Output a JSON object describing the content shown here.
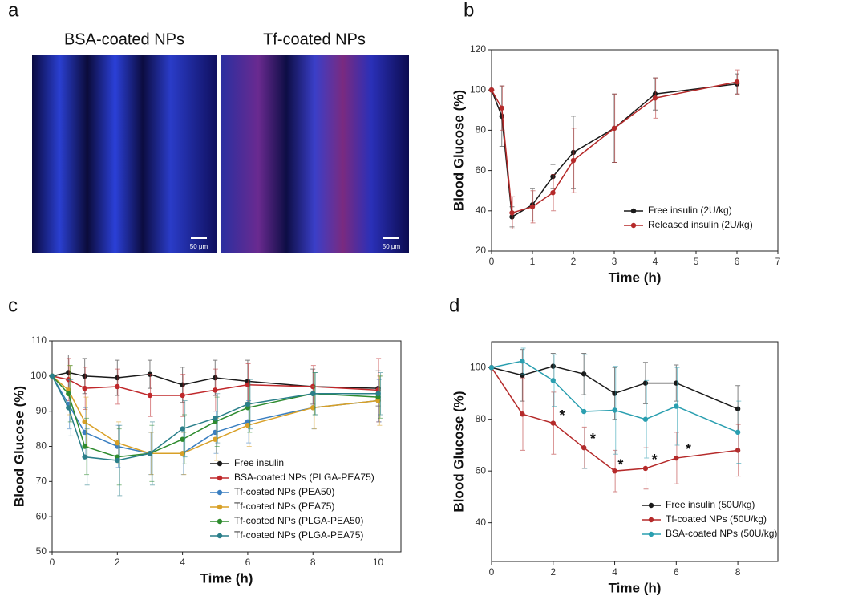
{
  "image_panel": {
    "label": "a",
    "titles": [
      "BSA-coated NPs",
      "Tf-coated NPs"
    ],
    "scale_bars": [
      "50 μm",
      "50 μm"
    ]
  },
  "chart_data": [
    {
      "type": "line",
      "label": "b",
      "x_label": "Time (h)",
      "y_label": "Blood Glucose (%)",
      "x": [
        0,
        0.25,
        0.5,
        1,
        1.5,
        2,
        3,
        4,
        6
      ],
      "series": [
        {
          "name": "Free insulin (2U/kg)",
          "color": "#1a1a1a",
          "values": [
            100,
            87,
            37,
            43,
            57,
            69,
            81,
            98,
            103
          ],
          "errors": [
            0,
            15,
            5,
            8,
            6,
            18,
            17,
            8,
            5
          ]
        },
        {
          "name": "Released insulin (2U/kg)",
          "color": "#b52a2a",
          "values": [
            100,
            91,
            39,
            42,
            49,
            65,
            81,
            96,
            104
          ],
          "errors": [
            0,
            11,
            8,
            8,
            9,
            16,
            17,
            10,
            6
          ]
        }
      ],
      "xlim": [
        0,
        7
      ],
      "xticks": [
        0,
        1,
        2,
        3,
        4,
        5,
        6,
        7
      ],
      "ylim": [
        20,
        120
      ],
      "yticks": [
        20,
        40,
        60,
        80,
        100,
        120
      ]
    },
    {
      "type": "line",
      "label": "c",
      "x_label": "Time (h)",
      "y_label": "Blood Glucose (%)",
      "x": [
        0,
        0.5,
        1,
        2,
        3,
        4,
        5,
        6,
        8,
        10
      ],
      "series": [
        {
          "name": "Free insulin",
          "color": "#1a1a1a",
          "values": [
            100,
            101,
            100,
            99.5,
            100.5,
            97.5,
            99.5,
            98.5,
            97,
            96.5
          ],
          "errors": [
            0,
            5,
            5,
            5,
            4,
            5,
            5,
            6,
            5,
            5
          ]
        },
        {
          "name": "BSA-coated NPs (PLGA-PEA75)",
          "color": "#c0282b",
          "values": [
            100,
            99,
            96.5,
            97,
            94.5,
            94.5,
            96,
            97.5,
            97,
            96
          ],
          "errors": [
            0,
            6,
            6,
            5,
            6,
            6,
            6,
            6,
            6,
            9
          ]
        },
        {
          "name": "Tf-coated NPs (PEA50)",
          "color": "#3a7fc1",
          "values": [
            100,
            92,
            84,
            80,
            78,
            78,
            84,
            87,
            91,
            93
          ],
          "errors": [
            0,
            7,
            7,
            6,
            6,
            6,
            6,
            6,
            6,
            6
          ]
        },
        {
          "name": "Tf-coated NPs (PEA75)",
          "color": "#d8a027",
          "values": [
            100,
            96,
            87,
            81,
            78,
            78,
            82,
            86,
            91,
            93
          ],
          "errors": [
            0,
            7,
            7,
            6,
            6,
            6,
            6,
            6,
            6,
            7
          ]
        },
        {
          "name": "Tf-coated NPs (PLGA-PEA50)",
          "color": "#2e8b2e",
          "values": [
            100,
            95,
            80,
            77,
            78,
            82,
            87,
            91,
            95,
            94
          ],
          "errors": [
            0,
            8,
            8,
            8,
            8,
            7,
            7,
            7,
            6,
            6
          ]
        },
        {
          "name": "Tf-coated NPs (PLGA-PEA75)",
          "color": "#2a7f8a",
          "values": [
            100,
            91,
            77,
            76,
            78,
            85,
            88,
            92,
            95,
            95
          ],
          "errors": [
            0,
            8,
            8,
            10,
            9,
            8,
            7,
            7,
            6,
            6
          ]
        }
      ],
      "xlim": [
        0,
        10.7
      ],
      "xticks": [
        0,
        2,
        4,
        6,
        8,
        10
      ],
      "ylim": [
        50,
        110
      ],
      "yticks": [
        50,
        60,
        70,
        80,
        90,
        100,
        110
      ]
    },
    {
      "type": "line",
      "label": "d",
      "x_label": "Time (h)",
      "y_label": "Blood Glucose (%)",
      "x": [
        0,
        1,
        2,
        3,
        4,
        5,
        6,
        8
      ],
      "series": [
        {
          "name": "Free insulin (50U/kg)",
          "color": "#1a1a1a",
          "values": [
            100,
            97,
            100.5,
            97.5,
            90,
            94,
            94,
            84
          ],
          "errors": [
            0,
            10,
            5,
            8,
            10,
            8,
            7,
            9
          ]
        },
        {
          "name": "Tf-coated NPs (50U/kg)",
          "color": "#b52a2a",
          "values": [
            100,
            82,
            78.5,
            69,
            60,
            61,
            65,
            68
          ],
          "errors": [
            0,
            14,
            12,
            8,
            8,
            8,
            10,
            10
          ]
        },
        {
          "name": "BSA-coated NPs (50U/kg)",
          "color": "#2a9fb0",
          "values": [
            100,
            102.5,
            95,
            83,
            83.5,
            80,
            85,
            75
          ],
          "errors": [
            0,
            5,
            10,
            22,
            17,
            15,
            15,
            12
          ]
        }
      ],
      "annotations": [
        {
          "text": "*",
          "x": 2.2,
          "y": 81
        },
        {
          "text": "*",
          "x": 3.2,
          "y": 72
        },
        {
          "text": "*",
          "x": 4.1,
          "y": 62
        },
        {
          "text": "*",
          "x": 5.2,
          "y": 64
        },
        {
          "text": "*",
          "x": 6.3,
          "y": 68
        }
      ],
      "xlim": [
        0,
        9.3
      ],
      "xticks": [
        0,
        2,
        4,
        6,
        8
      ],
      "ylim": [
        25,
        110
      ],
      "yticks": [
        40,
        60,
        80,
        100
      ]
    }
  ]
}
